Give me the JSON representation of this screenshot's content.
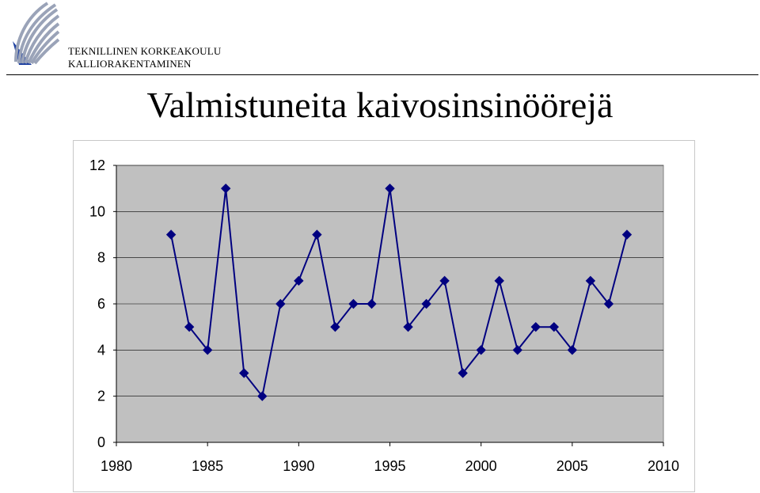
{
  "header": {
    "org_line1": "TEKNILLINEN KORKEAKOULU",
    "org_line2": "KALLIORAKENTAMINEN",
    "logo_icon": "tkk-logo-icon"
  },
  "slide": {
    "title": "Valmistuneita kaivosinsinöörejä"
  },
  "chart_data": {
    "type": "line",
    "title": "",
    "xlabel": "",
    "ylabel": "",
    "x": [
      1983,
      1984,
      1985,
      1986,
      1987,
      1988,
      1989,
      1990,
      1991,
      1992,
      1993,
      1994,
      1995,
      1996,
      1997,
      1998,
      1999,
      2000,
      2001,
      2002,
      2003,
      2004,
      2005,
      2006,
      2007,
      2008
    ],
    "series": [
      {
        "values": [
          9,
          5,
          4,
          11,
          3,
          2,
          6,
          7,
          9,
          5,
          6,
          6,
          11,
          5,
          6,
          7,
          3,
          4,
          7,
          4,
          5,
          5,
          4,
          7,
          6,
          9
        ]
      }
    ],
    "xlim": [
      1980,
      2010
    ],
    "ylim": [
      0,
      12
    ],
    "xticks": [
      "1980",
      "1985",
      "1990",
      "1995",
      "2000",
      "2005",
      "2010"
    ],
    "yticks": [
      "0",
      "2",
      "4",
      "6",
      "8",
      "10",
      "12"
    ],
    "grid": true,
    "legend": "none",
    "plot_background": "#c0c0c0",
    "line_color": "#000080",
    "marker": "diamond"
  }
}
